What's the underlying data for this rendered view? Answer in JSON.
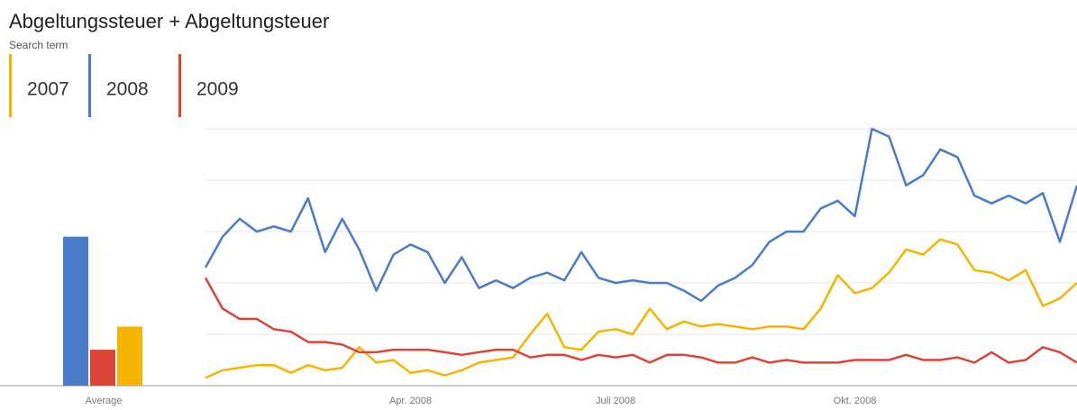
{
  "chart_data": {
    "type": "line",
    "title": "Abgeltungssteuer + Abgeltungsteuer",
    "subtitle": "Search term",
    "average_label": "Average",
    "categories": [
      null,
      null,
      null,
      null,
      null,
      null,
      null,
      null,
      null,
      null,
      null,
      null,
      "Apr. 2008",
      null,
      null,
      null,
      null,
      null,
      null,
      null,
      null,
      null,
      null,
      null,
      "Juli 2008",
      null,
      null,
      null,
      null,
      null,
      null,
      null,
      null,
      null,
      null,
      null,
      null,
      null,
      "Okt. 2008",
      null,
      null,
      null,
      null,
      null,
      null,
      null,
      null,
      null,
      null,
      null,
      null,
      null
    ],
    "ylim": [
      0,
      100
    ],
    "yticks": [
      0,
      20,
      40,
      60,
      80,
      100
    ],
    "grid": true,
    "series": [
      {
        "name": "2007",
        "color": "#f4b400",
        "average": 23,
        "values": [
          3,
          6,
          7,
          8,
          8,
          5,
          8,
          6,
          7,
          15,
          9,
          10,
          5,
          6,
          4,
          6,
          9,
          10,
          11,
          20,
          28,
          15,
          14,
          21,
          22,
          20,
          30,
          22,
          25,
          23,
          24,
          23,
          22,
          23,
          23,
          22,
          30,
          43,
          36,
          38,
          44,
          53,
          51,
          57,
          55,
          45,
          44,
          41,
          45,
          31,
          34,
          40
        ]
      },
      {
        "name": "2008",
        "color": "#4a7bc8",
        "average": 58,
        "values": [
          46,
          58,
          65,
          60,
          62,
          60,
          73,
          52,
          65,
          53,
          37,
          51,
          55,
          52,
          40,
          50,
          38,
          41,
          38,
          42,
          44,
          41,
          52,
          42,
          40,
          41,
          40,
          40,
          37,
          33,
          39,
          42,
          47,
          56,
          60,
          60,
          69,
          72,
          66,
          100,
          97,
          78,
          82,
          92,
          89,
          74,
          71,
          74,
          71,
          75,
          56,
          78
        ]
      },
      {
        "name": "2009",
        "color": "#db4437",
        "average": 14,
        "values": [
          42,
          30,
          26,
          26,
          22,
          21,
          17,
          17,
          16,
          13,
          13,
          14,
          14,
          14,
          13,
          12,
          13,
          14,
          14,
          11,
          12,
          12,
          10,
          12,
          11,
          12,
          9,
          12,
          12,
          11,
          9,
          9,
          11,
          9,
          10,
          9,
          9,
          9,
          10,
          10,
          10,
          12,
          10,
          10,
          11,
          9,
          13,
          9,
          10,
          15,
          13,
          9
        ]
      }
    ]
  }
}
